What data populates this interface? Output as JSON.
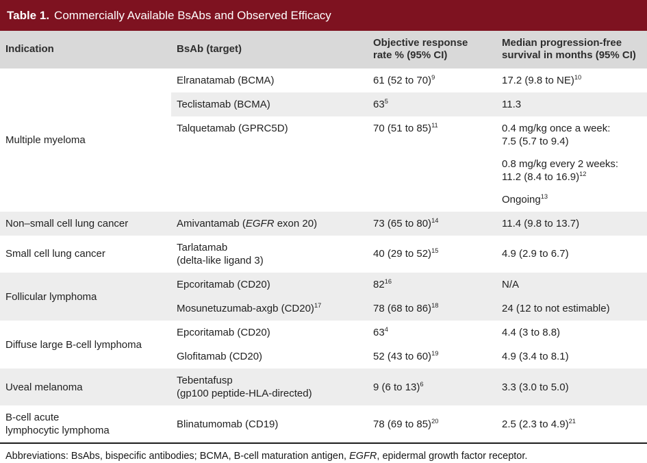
{
  "title": {
    "label": "Table 1.",
    "text": "Commercially Available BsAbs and Observed Efficacy"
  },
  "colors": {
    "header_bar": "#7e1220",
    "column_header_bg": "#d9d9d9",
    "shaded_row_bg": "#ededed",
    "bottom_border": "#1c1c1c"
  },
  "table": {
    "columns": [
      [
        "Indication"
      ],
      [
        "BsAb (target)"
      ],
      [
        "Objective response",
        "rate % (95% CI)"
      ],
      [
        "Median progression-free",
        "survival in months (95% CI)"
      ]
    ],
    "groups": [
      {
        "indication": [
          [
            {
              "t": "Multiple myeloma"
            }
          ]
        ],
        "rows": [
          {
            "shaded": false,
            "bsab": [
              [
                {
                  "t": "Elranatamab (BCMA)"
                }
              ]
            ],
            "orr": [
              [
                {
                  "t": "61 (52 to 70)"
                },
                {
                  "t": "9",
                  "sup": true
                }
              ]
            ],
            "pfs": [
              [
                {
                  "t": "17.2 (9.8 to NE)"
                },
                {
                  "t": "10",
                  "sup": true
                }
              ]
            ]
          },
          {
            "shaded": true,
            "bsab": [
              [
                {
                  "t": "Teclistamab (BCMA)"
                }
              ]
            ],
            "orr": [
              [
                {
                  "t": "63"
                },
                {
                  "t": "5",
                  "sup": true
                }
              ]
            ],
            "pfs": [
              [
                {
                  "t": "11.3"
                }
              ]
            ]
          },
          {
            "shaded": false,
            "bsab": [
              [
                {
                  "t": "Talquetamab (GPRC5D)"
                }
              ]
            ],
            "orr": [
              [
                {
                  "t": "70 (51 to 85)"
                },
                {
                  "t": "11",
                  "sup": true
                }
              ]
            ],
            "pfs": [
              [
                {
                  "t": "0.4 mg/kg once a week:"
                },
                {
                  "nl": true
                },
                {
                  "t": "7.5 (5.7 to 9.4)"
                }
              ],
              [
                {
                  "t": "0.8 mg/kg every 2 weeks:"
                },
                {
                  "nl": true
                },
                {
                  "t": "11.2 (8.4 to 16.9)"
                },
                {
                  "t": "12",
                  "sup": true
                }
              ],
              [
                {
                  "t": "Ongoing"
                },
                {
                  "t": "13",
                  "sup": true
                }
              ]
            ]
          }
        ]
      },
      {
        "indication": [
          [
            {
              "t": "Non–small cell lung cancer"
            }
          ]
        ],
        "rows": [
          {
            "shaded": true,
            "bsab": [
              [
                {
                  "t": "Amivantamab ("
                },
                {
                  "t": "EGFR",
                  "i": true
                },
                {
                  "t": " exon 20)"
                }
              ]
            ],
            "orr": [
              [
                {
                  "t": "73 (65 to 80)"
                },
                {
                  "t": "14",
                  "sup": true
                }
              ]
            ],
            "pfs": [
              [
                {
                  "t": "11.4 (9.8 to 13.7)"
                }
              ]
            ]
          }
        ]
      },
      {
        "indication": [
          [
            {
              "t": "Small cell lung cancer"
            }
          ]
        ],
        "rows": [
          {
            "shaded": false,
            "bsab": [
              [
                {
                  "t": "Tarlatamab"
                },
                {
                  "nl": true
                },
                {
                  "t": "(delta-like ligand 3)"
                }
              ]
            ],
            "orr": [
              [
                {
                  "t": "40 (29 to 52)"
                },
                {
                  "t": "15",
                  "sup": true
                }
              ]
            ],
            "pfs": [
              [
                {
                  "t": "4.9 (2.9 to 6.7)"
                }
              ]
            ]
          }
        ]
      },
      {
        "indication": [
          [
            {
              "t": "Follicular lymphoma"
            }
          ]
        ],
        "rows": [
          {
            "shaded": true,
            "bsab": [
              [
                {
                  "t": "Epcoritamab (CD20)"
                }
              ]
            ],
            "orr": [
              [
                {
                  "t": "82"
                },
                {
                  "t": "16",
                  "sup": true
                }
              ]
            ],
            "pfs": [
              [
                {
                  "t": "N/A"
                }
              ]
            ]
          },
          {
            "shaded": true,
            "bsab": [
              [
                {
                  "t": "Mosunetuzumab-axgb (CD20)"
                },
                {
                  "t": "17",
                  "sup": true
                }
              ]
            ],
            "orr": [
              [
                {
                  "t": "78 (68 to 86)"
                },
                {
                  "t": "18",
                  "sup": true
                }
              ]
            ],
            "pfs": [
              [
                {
                  "t": "24 (12 to not estimable)"
                }
              ]
            ]
          }
        ]
      },
      {
        "indication": [
          [
            {
              "t": "Diffuse large B-cell lymphoma"
            }
          ]
        ],
        "rows": [
          {
            "shaded": false,
            "bsab": [
              [
                {
                  "t": "Epcoritamab (CD20)"
                }
              ]
            ],
            "orr": [
              [
                {
                  "t": "63"
                },
                {
                  "t": "4",
                  "sup": true
                }
              ]
            ],
            "pfs": [
              [
                {
                  "t": "4.4 (3 to 8.8)"
                }
              ]
            ]
          },
          {
            "shaded": false,
            "bsab": [
              [
                {
                  "t": "Glofitamab (CD20)"
                }
              ]
            ],
            "orr": [
              [
                {
                  "t": "52 (43 to 60)"
                },
                {
                  "t": "19",
                  "sup": true
                }
              ]
            ],
            "pfs": [
              [
                {
                  "t": "4.9 (3.4 to 8.1)"
                }
              ]
            ]
          }
        ]
      },
      {
        "indication": [
          [
            {
              "t": "Uveal melanoma"
            }
          ]
        ],
        "rows": [
          {
            "shaded": true,
            "bsab": [
              [
                {
                  "t": "Tebentafusp"
                },
                {
                  "nl": true
                },
                {
                  "t": "(gp100 peptide-HLA-directed)"
                }
              ]
            ],
            "orr": [
              [
                {
                  "t": "9 (6 to 13)"
                },
                {
                  "t": "6",
                  "sup": true
                }
              ]
            ],
            "pfs": [
              [
                {
                  "t": "3.3 (3.0 to 5.0)"
                }
              ]
            ]
          }
        ]
      },
      {
        "indication": [
          [
            {
              "t": "B-cell acute"
            },
            {
              "nl": true
            },
            {
              "t": "lymphocytic lymphoma"
            }
          ]
        ],
        "rows": [
          {
            "shaded": false,
            "bsab": [
              [
                {
                  "t": "Blinatumomab (CD19)"
                }
              ]
            ],
            "orr": [
              [
                {
                  "t": "78 (69 to 85)"
                },
                {
                  "t": "20",
                  "sup": true
                }
              ]
            ],
            "pfs": [
              [
                {
                  "t": "2.5 (2.3 to 4.9)"
                },
                {
                  "t": "21",
                  "sup": true
                }
              ]
            ]
          }
        ]
      }
    ]
  },
  "footnote": {
    "segments": [
      {
        "t": "Abbreviations: BsAbs, bispecific antibodies; BCMA, B-cell maturation antigen, "
      },
      {
        "t": "EGFR",
        "i": true
      },
      {
        "t": ", epidermal growth factor receptor."
      }
    ]
  }
}
